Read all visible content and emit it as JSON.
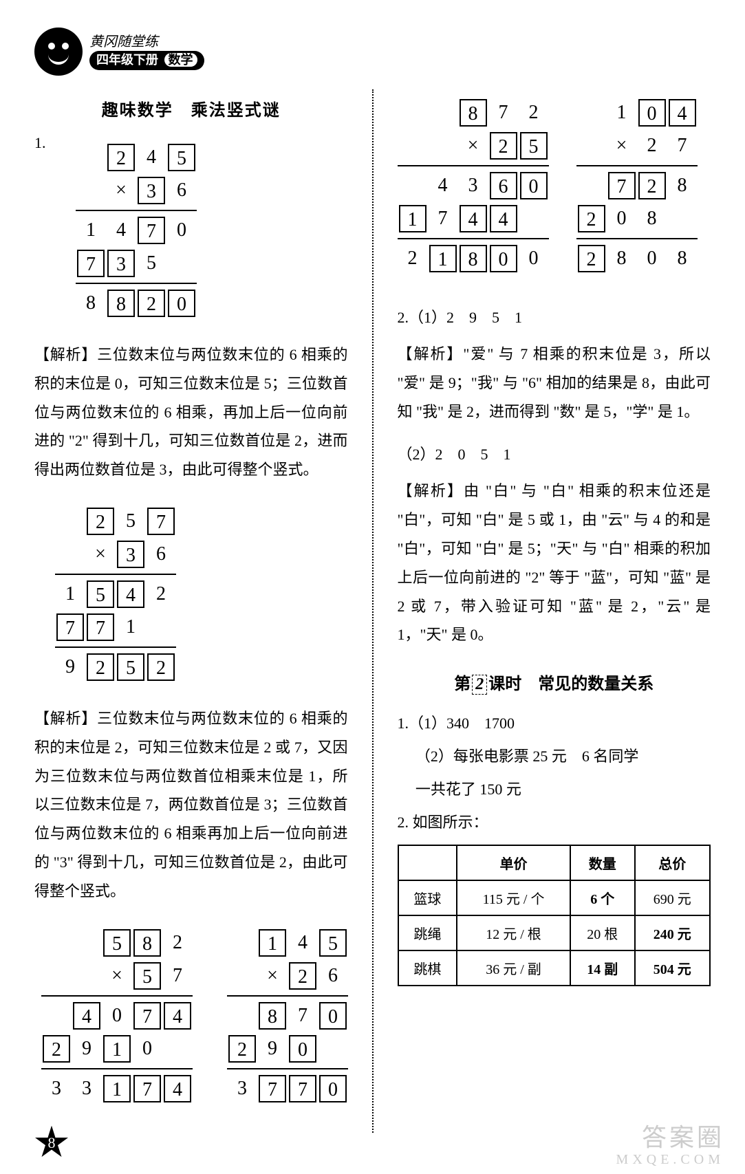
{
  "header": {
    "line1": "黄冈随堂练",
    "grade": "四年级下册",
    "subject": "数学"
  },
  "left": {
    "title": "趣味数学　乘法竖式谜",
    "q1_label": "1.",
    "mult1": {
      "r1": [
        {
          "v": "2",
          "b": true
        },
        {
          "v": "4",
          "b": false
        },
        {
          "v": "5",
          "b": true
        }
      ],
      "r2_op": "×",
      "r2": [
        {
          "v": "3",
          "b": true
        },
        {
          "v": "6",
          "b": false
        }
      ],
      "r3": [
        {
          "v": "1",
          "b": false
        },
        {
          "v": "4",
          "b": false
        },
        {
          "v": "7",
          "b": true
        },
        {
          "v": "0",
          "b": false
        }
      ],
      "r4": [
        {
          "v": "7",
          "b": true
        },
        {
          "v": "3",
          "b": true
        },
        {
          "v": "5",
          "b": false
        }
      ],
      "r5": [
        {
          "v": "8",
          "b": false
        },
        {
          "v": "8",
          "b": true
        },
        {
          "v": "2",
          "b": true
        },
        {
          "v": "0",
          "b": true
        }
      ]
    },
    "explain1": "【解析】三位数末位与两位数末位的 6 相乘的积的末位是 0，可知三位数末位是 5；三位数首位与两位数末位的 6 相乘，再加上后一位向前进的 \"2\" 得到十几，可知三位数首位是 2，进而得出两位数首位是 3，由此可得整个竖式。",
    "mult2": {
      "r1": [
        {
          "v": "2",
          "b": true
        },
        {
          "v": "5",
          "b": false
        },
        {
          "v": "7",
          "b": true
        }
      ],
      "r2_op": "×",
      "r2": [
        {
          "v": "3",
          "b": true
        },
        {
          "v": "6",
          "b": false
        }
      ],
      "r3": [
        {
          "v": "1",
          "b": false
        },
        {
          "v": "5",
          "b": true
        },
        {
          "v": "4",
          "b": true
        },
        {
          "v": "2",
          "b": false
        }
      ],
      "r4": [
        {
          "v": "7",
          "b": true
        },
        {
          "v": "7",
          "b": true
        },
        {
          "v": "1",
          "b": false
        }
      ],
      "r5": [
        {
          "v": "9",
          "b": false
        },
        {
          "v": "2",
          "b": true
        },
        {
          "v": "5",
          "b": true
        },
        {
          "v": "2",
          "b": true
        }
      ]
    },
    "explain2": "【解析】三位数末位与两位数末位的 6 相乘的积的末位是 2，可知三位数末位是 2 或 7，又因为三位数末位与两位数首位相乘末位是 1，所以三位数末位是 7，两位数首位是 3；三位数首位与两位数末位的 6 相乘再加上后一位向前进的 \"3\" 得到十几，可知三位数首位是 2，由此可得整个竖式。",
    "mult3": {
      "r1": [
        {
          "v": "5",
          "b": true
        },
        {
          "v": "8",
          "b": true
        },
        {
          "v": "2",
          "b": false
        }
      ],
      "r2_op": "×",
      "r2": [
        {
          "v": "5",
          "b": true
        },
        {
          "v": "7",
          "b": false
        }
      ],
      "r3": [
        {
          "v": "4",
          "b": true
        },
        {
          "v": "0",
          "b": false
        },
        {
          "v": "7",
          "b": true
        },
        {
          "v": "4",
          "b": true
        }
      ],
      "r4": [
        {
          "v": "2",
          "b": true
        },
        {
          "v": "9",
          "b": false
        },
        {
          "v": "1",
          "b": true
        },
        {
          "v": "0",
          "b": false
        }
      ],
      "r5": [
        {
          "v": "3",
          "b": false
        },
        {
          "v": "3",
          "b": false
        },
        {
          "v": "1",
          "b": true
        },
        {
          "v": "7",
          "b": true
        },
        {
          "v": "4",
          "b": true
        }
      ]
    },
    "mult4": {
      "r1": [
        {
          "v": "1",
          "b": true
        },
        {
          "v": "4",
          "b": false
        },
        {
          "v": "5",
          "b": true
        }
      ],
      "r2_op": "×",
      "r2": [
        {
          "v": "2",
          "b": true
        },
        {
          "v": "6",
          "b": false
        }
      ],
      "r3": [
        {
          "v": "8",
          "b": true
        },
        {
          "v": "7",
          "b": false
        },
        {
          "v": "0",
          "b": true
        }
      ],
      "r4": [
        {
          "v": "2",
          "b": true
        },
        {
          "v": "9",
          "b": false
        },
        {
          "v": "0",
          "b": true
        }
      ],
      "r5": [
        {
          "v": "3",
          "b": false
        },
        {
          "v": "7",
          "b": true
        },
        {
          "v": "7",
          "b": true
        },
        {
          "v": "0",
          "b": true
        }
      ]
    }
  },
  "right": {
    "mult5": {
      "r1": [
        {
          "v": "8",
          "b": true
        },
        {
          "v": "7",
          "b": false
        },
        {
          "v": "2",
          "b": false
        }
      ],
      "r2_op": "×",
      "r2": [
        {
          "v": "2",
          "b": true
        },
        {
          "v": "5",
          "b": true
        }
      ],
      "r3": [
        {
          "v": "4",
          "b": false
        },
        {
          "v": "3",
          "b": false
        },
        {
          "v": "6",
          "b": true
        },
        {
          "v": "0",
          "b": true
        }
      ],
      "r4": [
        {
          "v": "1",
          "b": true
        },
        {
          "v": "7",
          "b": false
        },
        {
          "v": "4",
          "b": true
        },
        {
          "v": "4",
          "b": true
        }
      ],
      "r5": [
        {
          "v": "2",
          "b": false
        },
        {
          "v": "1",
          "b": true
        },
        {
          "v": "8",
          "b": true
        },
        {
          "v": "0",
          "b": true
        },
        {
          "v": "0",
          "b": false
        }
      ]
    },
    "mult6": {
      "r1": [
        {
          "v": "1",
          "b": false
        },
        {
          "v": "0",
          "b": true
        },
        {
          "v": "4",
          "b": true
        }
      ],
      "r2_op": "×",
      "r2": [
        {
          "v": "2",
          "b": false
        },
        {
          "v": "7",
          "b": false
        }
      ],
      "r3": [
        {
          "v": "7",
          "b": true
        },
        {
          "v": "2",
          "b": true
        },
        {
          "v": "8",
          "b": false
        }
      ],
      "r4": [
        {
          "v": "2",
          "b": true
        },
        {
          "v": "0",
          "b": false
        },
        {
          "v": "8",
          "b": false
        }
      ],
      "r5": [
        {
          "v": "2",
          "b": true
        },
        {
          "v": "8",
          "b": false
        },
        {
          "v": "0",
          "b": false
        },
        {
          "v": "8",
          "b": false
        }
      ]
    },
    "q2_line1": "2.（1）2　9　5　1",
    "explain3": "【解析】\"爱\" 与 7 相乘的积末位是 3，所以 \"爱\" 是 9；\"我\" 与 \"6\" 相加的结果是 8，由此可知 \"我\" 是 2，进而得到 \"数\" 是 5，\"学\" 是 1。",
    "q2_line2": "（2）2　0　5　1",
    "explain4": "【解析】由 \"白\" 与 \"白\" 相乘的积末位还是 \"白\"，可知 \"白\" 是 5 或 1，由 \"云\" 与 4 的和是 \"白\"，可知 \"白\" 是 5；\"天\" 与 \"白\" 相乘的积加上后一位向前进的 \"2\" 等于 \"蓝\"，可知 \"蓝\" 是 2 或 7，带入验证可知 \"蓝\" 是 2，\"云\" 是 1，\"天\" 是 0。",
    "lesson_title_prefix": "第",
    "lesson_title_num": "2",
    "lesson_title_suffix": "课时　常见的数量关系",
    "a1_1": "1.（1）340　1700",
    "a1_2": "（2）每张电影票 25 元　6 名同学",
    "a1_3": "一共花了 150 元",
    "a2_label": "2. 如图所示：",
    "table": {
      "headers": [
        "",
        "单价",
        "数量",
        "总价"
      ],
      "rows": [
        [
          "篮球",
          "115 元 / 个",
          {
            "v": "6 个",
            "b": true
          },
          "690 元"
        ],
        [
          "跳绳",
          "12 元 / 根",
          "20 根",
          {
            "v": "240 元",
            "b": true
          }
        ],
        [
          "跳棋",
          {
            "v": "36 元 / 副",
            "b": false
          },
          {
            "v": "14 副",
            "b": true
          },
          {
            "v": "504 元",
            "b": true
          }
        ]
      ]
    }
  },
  "page_number": "8",
  "watermark": {
    "main": "答案圈",
    "sub": "MXQE.COM"
  }
}
